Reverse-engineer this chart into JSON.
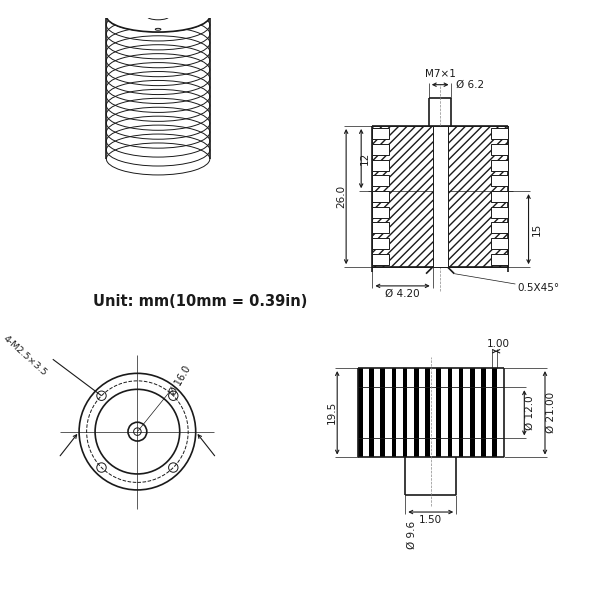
{
  "bg_color": "#ffffff",
  "line_color": "#1a1a1a",
  "dim_color": "#1a1a1a",
  "unit_text": "Unit: mm(10mm = 0.39in)",
  "top_right": {
    "total_h": "26.0",
    "top_h": "12",
    "right_h": "15",
    "bore_dia": "Ø 4.20",
    "thread_dia": "Ø 6.2",
    "thread_label": "M7×1",
    "chamfer": "0.5X45°"
  },
  "bottom_left": {
    "outer_dia": "Ø 16.0",
    "bolt_label": "4-M2.5×3.5"
  },
  "bottom_right": {
    "fin_pitch": "1.00",
    "core_dia": "Ø 12.0",
    "outer_dia": "Ø 21.00",
    "height": "19.5",
    "groove_w": "1.50",
    "shaft_dia": "Ø 9.6"
  }
}
